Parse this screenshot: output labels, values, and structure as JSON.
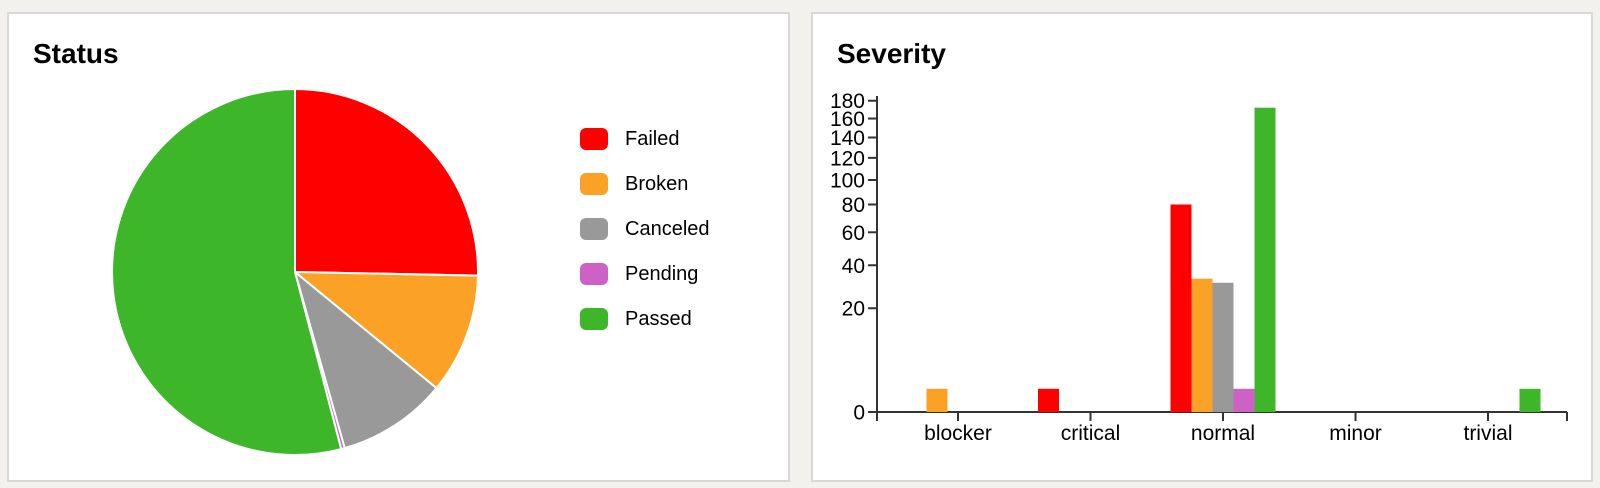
{
  "page": {
    "background": "#f2f1ed",
    "card_background": "#ffffff",
    "card_border": "#d8d8d8"
  },
  "chart_data": [
    {
      "type": "pie",
      "title": "Status",
      "labels": [
        "Failed",
        "Broken",
        "Canceled",
        "Pending",
        "Passed"
      ],
      "values": [
        81,
        34,
        31,
        1,
        173
      ],
      "colors": [
        "#ff0000",
        "#fba226",
        "#999999",
        "#cd61c6",
        "#3eb62a"
      ],
      "total": 320,
      "start_angle": "top",
      "direction": "clockwise",
      "slice_gap_color": "#ffffff",
      "legend_position": "right"
    },
    {
      "type": "bar",
      "title": "Severity",
      "categories": [
        "blocker",
        "critical",
        "normal",
        "minor",
        "trivial"
      ],
      "series": [
        {
          "name": "Failed",
          "color": "#ff0000",
          "values": [
            0,
            1,
            80,
            0,
            0
          ]
        },
        {
          "name": "Broken",
          "color": "#fba226",
          "values": [
            1,
            0,
            33,
            0,
            0
          ]
        },
        {
          "name": "Canceled",
          "color": "#999999",
          "values": [
            0,
            0,
            31,
            0,
            0
          ]
        },
        {
          "name": "Pending",
          "color": "#cd61c6",
          "values": [
            0,
            0,
            1,
            0,
            0
          ]
        },
        {
          "name": "Passed",
          "color": "#3eb62a",
          "values": [
            0,
            0,
            172,
            0,
            1
          ]
        }
      ],
      "xlabel": "",
      "ylabel": "",
      "ylim": [
        0,
        180
      ],
      "y_ticks": [
        0,
        20,
        40,
        60,
        80,
        100,
        120,
        140,
        160,
        180
      ],
      "y_scale": "sqrt",
      "grid": false,
      "axis_color": "#333333",
      "legend_position": "none"
    }
  ]
}
